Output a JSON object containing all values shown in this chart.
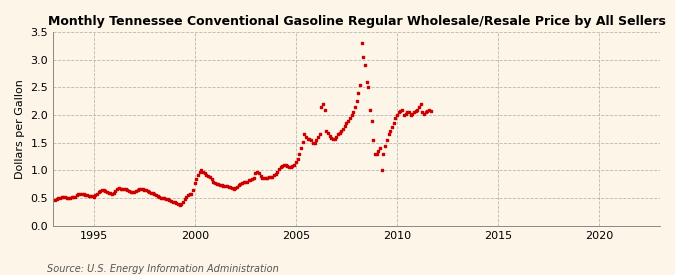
{
  "title": "Monthly Tennessee Conventional Gasoline Regular Wholesale/Resale Price by All Sellers",
  "ylabel": "Dollars per Gallon",
  "source": "Source: U.S. Energy Information Administration",
  "background_color": "#fdf6e8",
  "plot_bg_color": "#fdf6e8",
  "marker_color": "#cc0000",
  "xlim": [
    1993.0,
    2023.0
  ],
  "ylim": [
    0.0,
    3.5
  ],
  "yticks": [
    0.0,
    0.5,
    1.0,
    1.5,
    2.0,
    2.5,
    3.0,
    3.5
  ],
  "xticks": [
    1995,
    2000,
    2005,
    2010,
    2015,
    2020
  ],
  "data": [
    [
      1993.08,
      0.47
    ],
    [
      1993.17,
      0.49
    ],
    [
      1993.25,
      0.5
    ],
    [
      1993.33,
      0.51
    ],
    [
      1993.42,
      0.52
    ],
    [
      1993.5,
      0.53
    ],
    [
      1993.58,
      0.52
    ],
    [
      1993.67,
      0.51
    ],
    [
      1993.75,
      0.5
    ],
    [
      1993.83,
      0.51
    ],
    [
      1993.92,
      0.52
    ],
    [
      1994.0,
      0.52
    ],
    [
      1994.08,
      0.53
    ],
    [
      1994.17,
      0.55
    ],
    [
      1994.25,
      0.57
    ],
    [
      1994.33,
      0.58
    ],
    [
      1994.42,
      0.58
    ],
    [
      1994.5,
      0.57
    ],
    [
      1994.58,
      0.56
    ],
    [
      1994.67,
      0.55
    ],
    [
      1994.75,
      0.54
    ],
    [
      1994.83,
      0.54
    ],
    [
      1994.92,
      0.54
    ],
    [
      1995.0,
      0.53
    ],
    [
      1995.08,
      0.55
    ],
    [
      1995.17,
      0.58
    ],
    [
      1995.25,
      0.62
    ],
    [
      1995.33,
      0.63
    ],
    [
      1995.42,
      0.64
    ],
    [
      1995.5,
      0.65
    ],
    [
      1995.58,
      0.63
    ],
    [
      1995.67,
      0.61
    ],
    [
      1995.75,
      0.6
    ],
    [
      1995.83,
      0.59
    ],
    [
      1995.92,
      0.58
    ],
    [
      1996.0,
      0.59
    ],
    [
      1996.08,
      0.63
    ],
    [
      1996.17,
      0.67
    ],
    [
      1996.25,
      0.68
    ],
    [
      1996.33,
      0.67
    ],
    [
      1996.42,
      0.66
    ],
    [
      1996.5,
      0.67
    ],
    [
      1996.58,
      0.66
    ],
    [
      1996.67,
      0.65
    ],
    [
      1996.75,
      0.63
    ],
    [
      1996.83,
      0.62
    ],
    [
      1996.92,
      0.61
    ],
    [
      1997.0,
      0.62
    ],
    [
      1997.08,
      0.63
    ],
    [
      1997.17,
      0.65
    ],
    [
      1997.25,
      0.66
    ],
    [
      1997.33,
      0.67
    ],
    [
      1997.42,
      0.66
    ],
    [
      1997.5,
      0.65
    ],
    [
      1997.58,
      0.64
    ],
    [
      1997.67,
      0.63
    ],
    [
      1997.75,
      0.62
    ],
    [
      1997.83,
      0.6
    ],
    [
      1997.92,
      0.59
    ],
    [
      1998.0,
      0.58
    ],
    [
      1998.08,
      0.56
    ],
    [
      1998.17,
      0.54
    ],
    [
      1998.25,
      0.52
    ],
    [
      1998.33,
      0.51
    ],
    [
      1998.42,
      0.5
    ],
    [
      1998.5,
      0.5
    ],
    [
      1998.58,
      0.49
    ],
    [
      1998.67,
      0.48
    ],
    [
      1998.75,
      0.46
    ],
    [
      1998.83,
      0.45
    ],
    [
      1998.92,
      0.44
    ],
    [
      1999.0,
      0.43
    ],
    [
      1999.08,
      0.41
    ],
    [
      1999.17,
      0.4
    ],
    [
      1999.25,
      0.38
    ],
    [
      1999.33,
      0.4
    ],
    [
      1999.42,
      0.44
    ],
    [
      1999.5,
      0.48
    ],
    [
      1999.58,
      0.52
    ],
    [
      1999.67,
      0.55
    ],
    [
      1999.75,
      0.57
    ],
    [
      1999.83,
      0.58
    ],
    [
      1999.92,
      0.65
    ],
    [
      2000.0,
      0.78
    ],
    [
      2000.08,
      0.85
    ],
    [
      2000.17,
      0.92
    ],
    [
      2000.25,
      0.97
    ],
    [
      2000.33,
      1.0
    ],
    [
      2000.42,
      0.98
    ],
    [
      2000.5,
      0.95
    ],
    [
      2000.58,
      0.92
    ],
    [
      2000.67,
      0.9
    ],
    [
      2000.75,
      0.88
    ],
    [
      2000.83,
      0.85
    ],
    [
      2000.92,
      0.8
    ],
    [
      2001.0,
      0.78
    ],
    [
      2001.08,
      0.76
    ],
    [
      2001.17,
      0.75
    ],
    [
      2001.25,
      0.74
    ],
    [
      2001.33,
      0.73
    ],
    [
      2001.42,
      0.72
    ],
    [
      2001.5,
      0.72
    ],
    [
      2001.58,
      0.72
    ],
    [
      2001.67,
      0.71
    ],
    [
      2001.75,
      0.7
    ],
    [
      2001.83,
      0.68
    ],
    [
      2001.92,
      0.66
    ],
    [
      2002.0,
      0.68
    ],
    [
      2002.08,
      0.7
    ],
    [
      2002.17,
      0.73
    ],
    [
      2002.25,
      0.76
    ],
    [
      2002.33,
      0.78
    ],
    [
      2002.42,
      0.8
    ],
    [
      2002.5,
      0.8
    ],
    [
      2002.58,
      0.8
    ],
    [
      2002.67,
      0.82
    ],
    [
      2002.75,
      0.83
    ],
    [
      2002.83,
      0.84
    ],
    [
      2002.92,
      0.87
    ],
    [
      2003.0,
      0.95
    ],
    [
      2003.08,
      0.98
    ],
    [
      2003.17,
      0.95
    ],
    [
      2003.25,
      0.9
    ],
    [
      2003.33,
      0.87
    ],
    [
      2003.42,
      0.86
    ],
    [
      2003.5,
      0.86
    ],
    [
      2003.58,
      0.87
    ],
    [
      2003.67,
      0.88
    ],
    [
      2003.75,
      0.88
    ],
    [
      2003.83,
      0.89
    ],
    [
      2003.92,
      0.91
    ],
    [
      2004.0,
      0.93
    ],
    [
      2004.08,
      0.97
    ],
    [
      2004.17,
      1.02
    ],
    [
      2004.25,
      1.07
    ],
    [
      2004.33,
      1.08
    ],
    [
      2004.42,
      1.09
    ],
    [
      2004.5,
      1.09
    ],
    [
      2004.58,
      1.08
    ],
    [
      2004.67,
      1.07
    ],
    [
      2004.75,
      1.07
    ],
    [
      2004.83,
      1.08
    ],
    [
      2004.92,
      1.1
    ],
    [
      2005.0,
      1.15
    ],
    [
      2005.08,
      1.2
    ],
    [
      2005.17,
      1.3
    ],
    [
      2005.25,
      1.4
    ],
    [
      2005.33,
      1.52
    ],
    [
      2005.42,
      1.65
    ],
    [
      2005.5,
      1.6
    ],
    [
      2005.58,
      1.57
    ],
    [
      2005.67,
      1.57
    ],
    [
      2005.75,
      1.55
    ],
    [
      2005.83,
      1.5
    ],
    [
      2005.92,
      1.5
    ],
    [
      2006.0,
      1.55
    ],
    [
      2006.08,
      1.6
    ],
    [
      2006.17,
      1.65
    ],
    [
      2006.25,
      2.15
    ],
    [
      2006.33,
      2.2
    ],
    [
      2006.42,
      2.1
    ],
    [
      2006.5,
      1.72
    ],
    [
      2006.58,
      1.68
    ],
    [
      2006.67,
      1.62
    ],
    [
      2006.75,
      1.58
    ],
    [
      2006.83,
      1.56
    ],
    [
      2006.92,
      1.57
    ],
    [
      2007.0,
      1.6
    ],
    [
      2007.08,
      1.65
    ],
    [
      2007.17,
      1.68
    ],
    [
      2007.25,
      1.72
    ],
    [
      2007.33,
      1.75
    ],
    [
      2007.42,
      1.8
    ],
    [
      2007.5,
      1.85
    ],
    [
      2007.58,
      1.9
    ],
    [
      2007.67,
      1.95
    ],
    [
      2007.75,
      2.0
    ],
    [
      2007.83,
      2.05
    ],
    [
      2007.92,
      2.15
    ],
    [
      2008.0,
      2.25
    ],
    [
      2008.08,
      2.4
    ],
    [
      2008.17,
      2.55
    ],
    [
      2008.25,
      3.3
    ],
    [
      2008.33,
      3.05
    ],
    [
      2008.42,
      2.9
    ],
    [
      2008.5,
      2.6
    ],
    [
      2008.58,
      2.5
    ],
    [
      2008.67,
      2.1
    ],
    [
      2008.75,
      1.9
    ],
    [
      2008.83,
      1.55
    ],
    [
      2008.92,
      1.3
    ],
    [
      2009.0,
      1.3
    ],
    [
      2009.08,
      1.35
    ],
    [
      2009.17,
      1.4
    ],
    [
      2009.25,
      1.0
    ],
    [
      2009.33,
      1.3
    ],
    [
      2009.42,
      1.45
    ],
    [
      2009.5,
      1.55
    ],
    [
      2009.58,
      1.65
    ],
    [
      2009.67,
      1.72
    ],
    [
      2009.75,
      1.78
    ],
    [
      2009.83,
      1.85
    ],
    [
      2009.92,
      1.95
    ],
    [
      2010.0,
      2.0
    ],
    [
      2010.08,
      2.05
    ],
    [
      2010.17,
      2.08
    ],
    [
      2010.25,
      2.1
    ],
    [
      2010.33,
      2.0
    ],
    [
      2010.42,
      2.02
    ],
    [
      2010.5,
      2.05
    ],
    [
      2010.58,
      2.05
    ],
    [
      2010.67,
      2.0
    ],
    [
      2010.75,
      2.02
    ],
    [
      2010.83,
      2.05
    ],
    [
      2010.92,
      2.08
    ],
    [
      2011.0,
      2.1
    ],
    [
      2011.08,
      2.15
    ],
    [
      2011.17,
      2.2
    ],
    [
      2011.25,
      2.05
    ],
    [
      2011.33,
      2.02
    ],
    [
      2011.42,
      2.05
    ],
    [
      2011.5,
      2.08
    ],
    [
      2011.58,
      2.1
    ],
    [
      2011.67,
      2.08
    ]
  ]
}
